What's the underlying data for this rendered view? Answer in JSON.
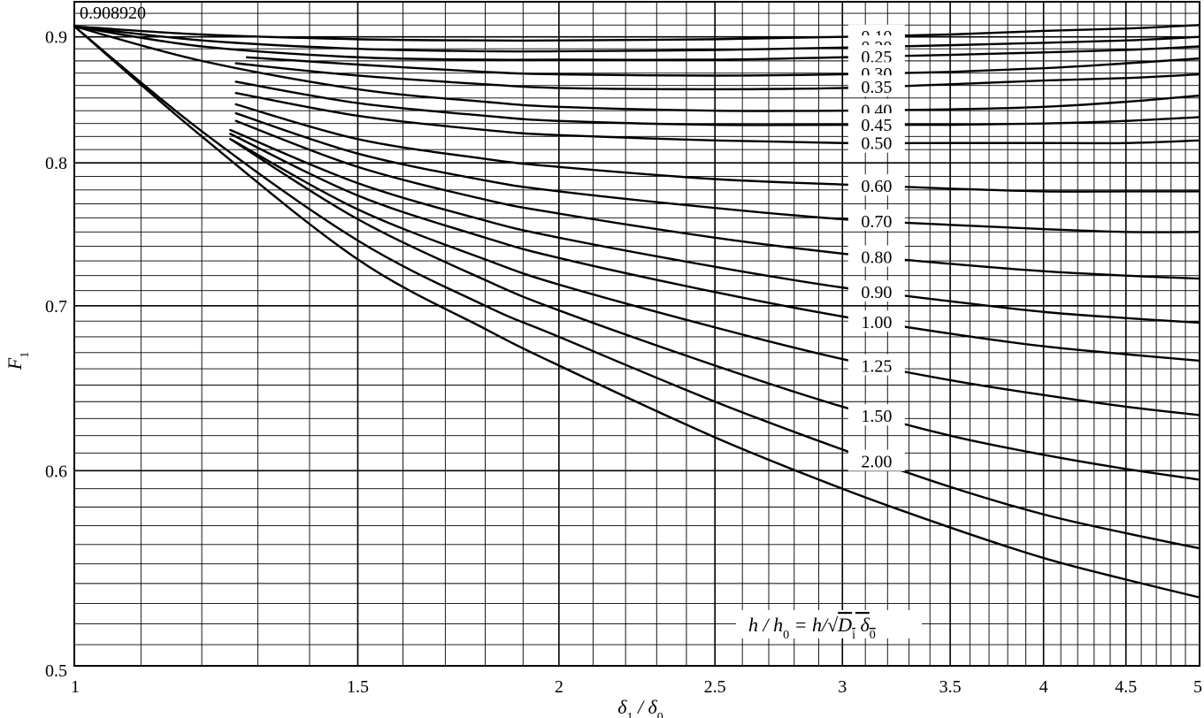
{
  "chart_data": {
    "type": "line",
    "xlabel": "δ1 / δ0",
    "ylabel": "F1",
    "x_scale": "log",
    "y_scale": "log",
    "xlim": [
      1,
      5
    ],
    "ylim": [
      0.5,
      0.93
    ],
    "grid": true,
    "x_ticks": [
      "1",
      "1.5",
      "2",
      "2.5",
      "3",
      "3.5",
      "4",
      "4.5",
      "5"
    ],
    "y_ticks": [
      "0.5",
      "0.6",
      "0.7",
      "0.8",
      "0.9"
    ],
    "annotation": "0.908920",
    "legend_title": "h/h0 = h/√(Di δ0)",
    "series": [
      {
        "name": "0.10",
        "x": [
          1,
          1.2,
          1.5,
          1.8,
          2,
          2.5,
          3,
          3.5,
          4,
          4.5,
          5
        ],
        "y": [
          0.9089,
          0.902,
          0.898,
          0.897,
          0.897,
          0.898,
          0.9,
          0.902,
          0.905,
          0.907,
          0.91
        ]
      },
      {
        "name": "0.20",
        "x": [
          1,
          1.2,
          1.5,
          1.8,
          2,
          2.5,
          3,
          3.5,
          4,
          4.5,
          5
        ],
        "y": [
          0.9089,
          0.897,
          0.89,
          0.888,
          0.888,
          0.889,
          0.891,
          0.893,
          0.895,
          0.897,
          0.9
        ]
      },
      {
        "name": "0.25",
        "x": [
          1,
          1.2,
          1.5,
          1.8,
          2,
          2.5,
          3,
          3.5,
          4,
          4.5,
          5
        ],
        "y": [
          0.9089,
          0.892,
          0.883,
          0.881,
          0.881,
          0.881,
          0.883,
          0.885,
          0.887,
          0.889,
          0.892
        ]
      },
      {
        "name": "0.30",
        "x": [
          1.28,
          1.5,
          1.8,
          2,
          2.5,
          3,
          3.5,
          4,
          4.5,
          5
        ],
        "y": [
          0.883,
          0.877,
          0.871,
          0.869,
          0.868,
          0.869,
          0.871,
          0.874,
          0.878,
          0.882
        ]
      },
      {
        "name": "0.35",
        "x": [
          1.26,
          1.5,
          1.8,
          2,
          2.5,
          3,
          3.5,
          4,
          4.5,
          5
        ],
        "y": [
          0.878,
          0.868,
          0.861,
          0.858,
          0.857,
          0.858,
          0.861,
          0.864,
          0.866,
          0.869
        ]
      },
      {
        "name": "0.40",
        "x": [
          1,
          1.2,
          1.5,
          1.8,
          2,
          2.5,
          3,
          3.5,
          4,
          4.5,
          5
        ],
        "y": [
          0.9089,
          0.88,
          0.857,
          0.847,
          0.843,
          0.84,
          0.84,
          0.841,
          0.843,
          0.847,
          0.852
        ]
      },
      {
        "name": "0.45",
        "x": [
          1.26,
          1.5,
          1.8,
          2,
          2.5,
          3,
          3.5,
          4,
          4.5,
          5
        ],
        "y": [
          0.863,
          0.846,
          0.836,
          0.832,
          0.829,
          0.829,
          0.829,
          0.83,
          0.832,
          0.835
        ]
      },
      {
        "name": "0.50",
        "x": [
          1.26,
          1.5,
          1.8,
          2,
          2.5,
          3,
          3.5,
          4,
          4.5,
          5
        ],
        "y": [
          0.854,
          0.836,
          0.825,
          0.821,
          0.817,
          0.815,
          0.815,
          0.815,
          0.815,
          0.817
        ]
      },
      {
        "name": "0.60",
        "x": [
          1.26,
          1.5,
          1.8,
          2,
          2.5,
          3,
          3.5,
          4,
          4.5,
          5
        ],
        "y": [
          0.845,
          0.818,
          0.803,
          0.797,
          0.788,
          0.784,
          0.781,
          0.779,
          0.779,
          0.779
        ]
      },
      {
        "name": "0.70",
        "x": [
          1.26,
          1.5,
          1.8,
          2,
          2.5,
          3,
          3.5,
          4,
          4.5,
          5
        ],
        "y": [
          0.838,
          0.807,
          0.787,
          0.779,
          0.767,
          0.759,
          0.755,
          0.752,
          0.75,
          0.75
        ]
      },
      {
        "name": "0.80",
        "x": [
          1.26,
          1.5,
          1.8,
          2,
          2.5,
          3,
          3.5,
          4,
          4.5,
          5
        ],
        "y": [
          0.832,
          0.797,
          0.773,
          0.763,
          0.746,
          0.735,
          0.728,
          0.723,
          0.72,
          0.718
        ]
      },
      {
        "name": "0.90",
        "x": [
          1.25,
          1.5,
          1.8,
          2,
          2.5,
          3,
          3.5,
          4,
          4.5,
          5
        ],
        "y": [
          0.825,
          0.785,
          0.758,
          0.746,
          0.726,
          0.712,
          0.703,
          0.696,
          0.692,
          0.689
        ]
      },
      {
        "name": "1.00",
        "x": [
          1.25,
          1.5,
          1.8,
          2,
          2.5,
          3,
          3.5,
          4,
          4.5,
          5
        ],
        "y": [
          0.822,
          0.776,
          0.746,
          0.732,
          0.709,
          0.693,
          0.682,
          0.674,
          0.669,
          0.665
        ]
      },
      {
        "name": "1.25",
        "x": [
          1.25,
          1.5,
          1.8,
          2,
          2.5,
          3,
          3.5,
          4,
          4.5,
          5
        ],
        "y": [
          0.818,
          0.766,
          0.731,
          0.714,
          0.686,
          0.666,
          0.653,
          0.644,
          0.637,
          0.632
        ]
      },
      {
        "name": "1.50",
        "x": [
          1.25,
          1.5,
          1.8,
          2,
          2.5,
          3,
          3.5,
          4,
          4.5,
          5
        ],
        "y": [
          0.818,
          0.759,
          0.717,
          0.697,
          0.662,
          0.637,
          0.62,
          0.609,
          0.601,
          0.595
        ]
      },
      {
        "name": "2.00",
        "x": [
          1,
          1.2,
          1.5,
          1.8,
          2,
          2.5,
          3,
          3.5,
          4,
          4.5,
          5
        ],
        "y": [
          0.9089,
          0.824,
          0.744,
          0.7,
          0.68,
          0.64,
          0.612,
          0.591,
          0.576,
          0.566,
          0.558
        ]
      },
      {
        "name": "",
        "x": [
          1,
          1.2,
          1.5,
          1.8,
          2,
          2.5,
          3,
          3.5,
          4,
          4.5,
          5
        ],
        "y": [
          0.9089,
          0.82,
          0.731,
          0.685,
          0.662,
          0.619,
          0.59,
          0.569,
          0.553,
          0.542,
          0.533
        ]
      }
    ]
  }
}
